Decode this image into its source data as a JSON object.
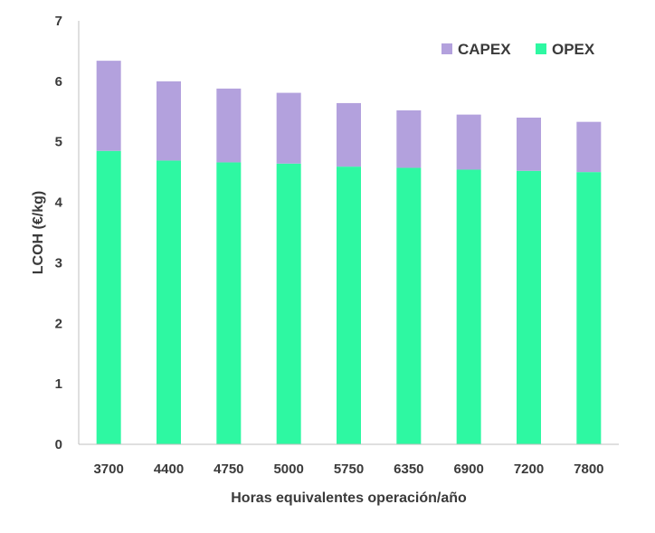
{
  "chart_data": {
    "type": "bar",
    "stacked": true,
    "categories": [
      "3700",
      "4400",
      "4750",
      "5000",
      "5750",
      "6350",
      "6900",
      "7200",
      "7800"
    ],
    "series": [
      {
        "name": "OPEX",
        "color": "#2EF8A2",
        "values": [
          4.85,
          4.69,
          4.66,
          4.64,
          4.59,
          4.57,
          4.54,
          4.52,
          4.5
        ]
      },
      {
        "name": "CAPEX",
        "color": "#B3A1DD",
        "values": [
          1.49,
          1.31,
          1.22,
          1.17,
          1.05,
          0.95,
          0.91,
          0.88,
          0.83
        ]
      }
    ],
    "title": "",
    "xlabel": "Horas equivalentes operación/año",
    "ylabel": "LCOH (€/kg)",
    "ylim": [
      0,
      7
    ],
    "yticks": [
      "0",
      "1",
      "2",
      "3",
      "4",
      "5",
      "6",
      "7"
    ],
    "grid": false,
    "legend_position": "top-right",
    "legend": [
      "CAPEX",
      "OPEX"
    ]
  }
}
